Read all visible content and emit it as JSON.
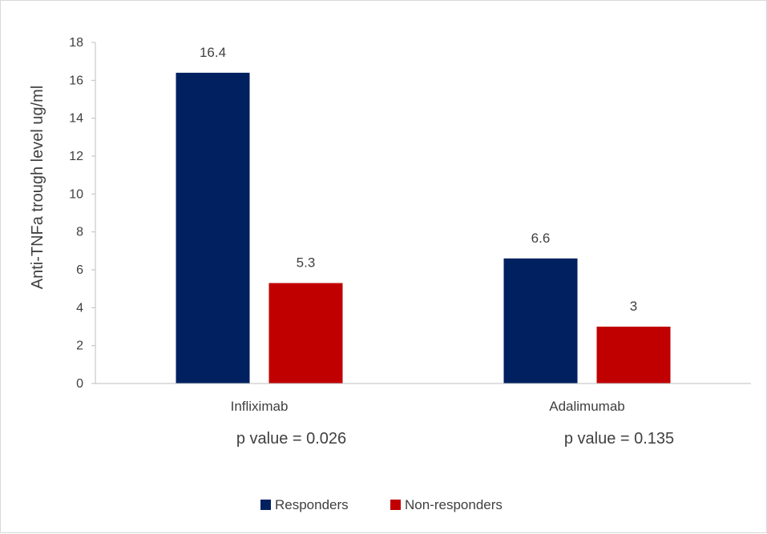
{
  "chart_data": {
    "type": "bar",
    "categories": [
      "Infliximab",
      "Adalimumab"
    ],
    "category_notes": [
      "p value = 0.026",
      "p value = 0.135"
    ],
    "series": [
      {
        "name": "Responders",
        "values": [
          16.4,
          6.6
        ],
        "color": "#002060"
      },
      {
        "name": "Non-responders",
        "values": [
          5.3,
          3
        ],
        "color": "#C00000"
      }
    ],
    "data_labels": [
      [
        "16.4",
        "6.6"
      ],
      [
        "5.3",
        "3"
      ]
    ],
    "ylabel": "Anti-TNFa trough level ug/ml",
    "xlabel": "",
    "ylim": [
      0,
      18
    ],
    "yticks": [
      0,
      2,
      4,
      6,
      8,
      10,
      12,
      14,
      16,
      18
    ],
    "grid": false,
    "legend_position": "bottom"
  }
}
